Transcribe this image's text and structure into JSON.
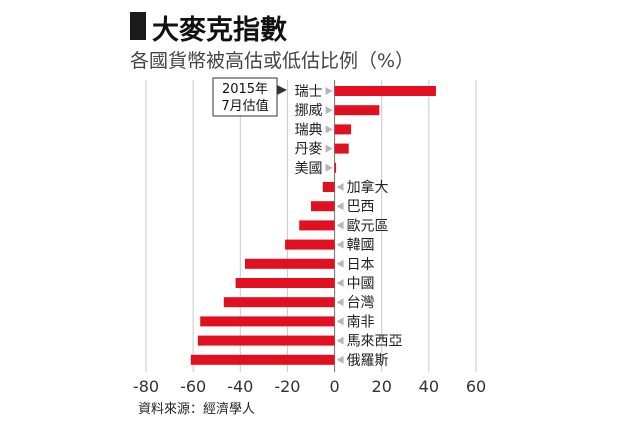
{
  "chart_data": {
    "type": "bar",
    "orientation": "horizontal",
    "title": "大麥克指數",
    "subtitle": "各國貨幣被高估或低估比例（%）",
    "source": "資料來源：經濟學人",
    "annotation": [
      "2015年",
      "7月估值"
    ],
    "categories": [
      "瑞士",
      "挪威",
      "瑞典",
      "丹麥",
      "美國",
      "加拿大",
      "巴西",
      "歐元區",
      "韓國",
      "日本",
      "中國",
      "台灣",
      "南非",
      "馬來西亞",
      "俄羅斯"
    ],
    "values": [
      43,
      19,
      7,
      6,
      0,
      -5,
      -10,
      -15,
      -21,
      -38,
      -42,
      -47,
      -57,
      -58,
      -61
    ],
    "xlim": [
      -80,
      60
    ],
    "xticks": [
      -80,
      -60,
      -40,
      -20,
      0,
      20,
      40,
      60
    ],
    "grid": true,
    "bar_color": "#e01020"
  }
}
